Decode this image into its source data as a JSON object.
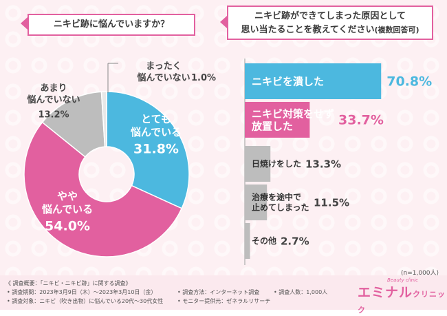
{
  "left_title": "ニキビ跡に悩んでいますか？",
  "right_title_line1": "ニキビ跡ができてしまった原因として",
  "right_title_line2": "思い当たることを教えてください",
  "right_title_suffix": "(複数回答可)",
  "n_note": "(n=1,000人)",
  "colors": {
    "accent": "#e2609f",
    "blue": "#4cb8df",
    "gray": "#bdbdbd"
  },
  "chart_data": [
    {
      "type": "pie",
      "title": "ニキビ跡に悩んでいますか？",
      "slices": [
        {
          "label_lines": [
            "とても",
            "悩んでいる"
          ],
          "value": 31.8,
          "value_text": "31.8%",
          "color": "#4cb8df"
        },
        {
          "label_lines": [
            "やや",
            "悩んでいる"
          ],
          "value": 54.0,
          "value_text": "54.0%",
          "color": "#e2609f"
        },
        {
          "label_lines": [
            "あまり",
            "悩んでいない"
          ],
          "value": 13.2,
          "value_text": "13.2%",
          "color": "#bdbdbd"
        },
        {
          "label_lines": [
            "まったく",
            "悩んでいない"
          ],
          "value": 1.0,
          "value_text": "1.0%",
          "color": "#e8e8e8"
        }
      ]
    },
    {
      "type": "bar",
      "orientation": "horizontal",
      "title": "ニキビ跡ができてしまった原因として思い当たることを教えてください(複数回答可)",
      "xlim": [
        0,
        100
      ],
      "bars": [
        {
          "label_lines": [
            "ニキビを潰した"
          ],
          "value": 70.8,
          "value_text": "70.8%",
          "color": "#4cb8df"
        },
        {
          "label_lines": [
            "ニキビ対策をせず",
            "放置した"
          ],
          "value": 33.7,
          "value_text": "33.7%",
          "color": "#e2609f"
        },
        {
          "label_lines": [
            "日焼けをした"
          ],
          "value": 13.3,
          "value_text": "13.3%",
          "color": "#bdbdbd"
        },
        {
          "label_lines": [
            "治療を途中で",
            "止めてしまった"
          ],
          "value": 11.5,
          "value_text": "11.5%",
          "color": "#bdbdbd"
        },
        {
          "label_lines": [
            "その他"
          ],
          "value": 2.7,
          "value_text": "2.7%",
          "color": "#bdbdbd"
        }
      ]
    }
  ],
  "footer": {
    "heading": "《 調査概要：「ニキビ・ニキビ跡」に関する調査》",
    "period": "• 調査期間：2023年3月9日（木）～2023年3月10日（金）",
    "target": "• 調査対象：ニキビ（吹き出物）に悩んでいる20代～30代女性",
    "method": "• 調査方法：インターネット調査",
    "monitor": "• モニター提供元：ゼネラルリサーチ",
    "count": "• 調査人数：1,000人"
  },
  "logo": {
    "main": "エミナル",
    "sub": "クリニック",
    "tag": "Beauty clinic"
  }
}
